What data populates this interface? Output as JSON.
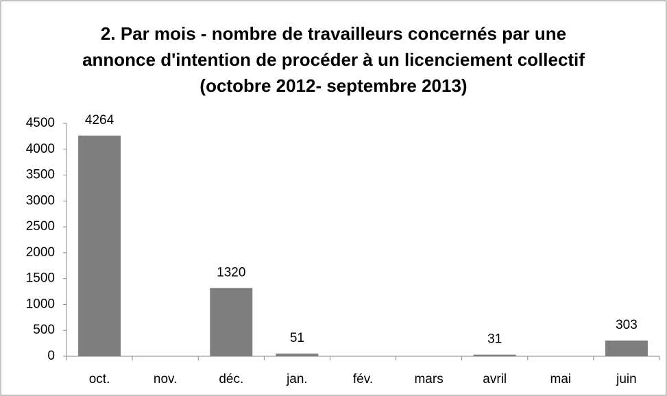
{
  "chart_data": {
    "type": "bar",
    "title": "2. Par mois - nombre de travailleurs concernés par une annonce d'intention de procéder à un licenciement collectif (octobre 2012- septembre 2013)",
    "categories": [
      "oct.",
      "nov.",
      "déc.",
      "jan.",
      "fév.",
      "mars",
      "avril",
      "mai",
      "juin"
    ],
    "values": [
      4264,
      null,
      1320,
      51,
      null,
      null,
      31,
      null,
      303
    ],
    "color": "#7f7f7f",
    "ylim": [
      0,
      4500
    ],
    "yticks": [
      0,
      500,
      1000,
      1500,
      2000,
      2500,
      3000,
      3500,
      4000,
      4500
    ],
    "grid": false
  }
}
